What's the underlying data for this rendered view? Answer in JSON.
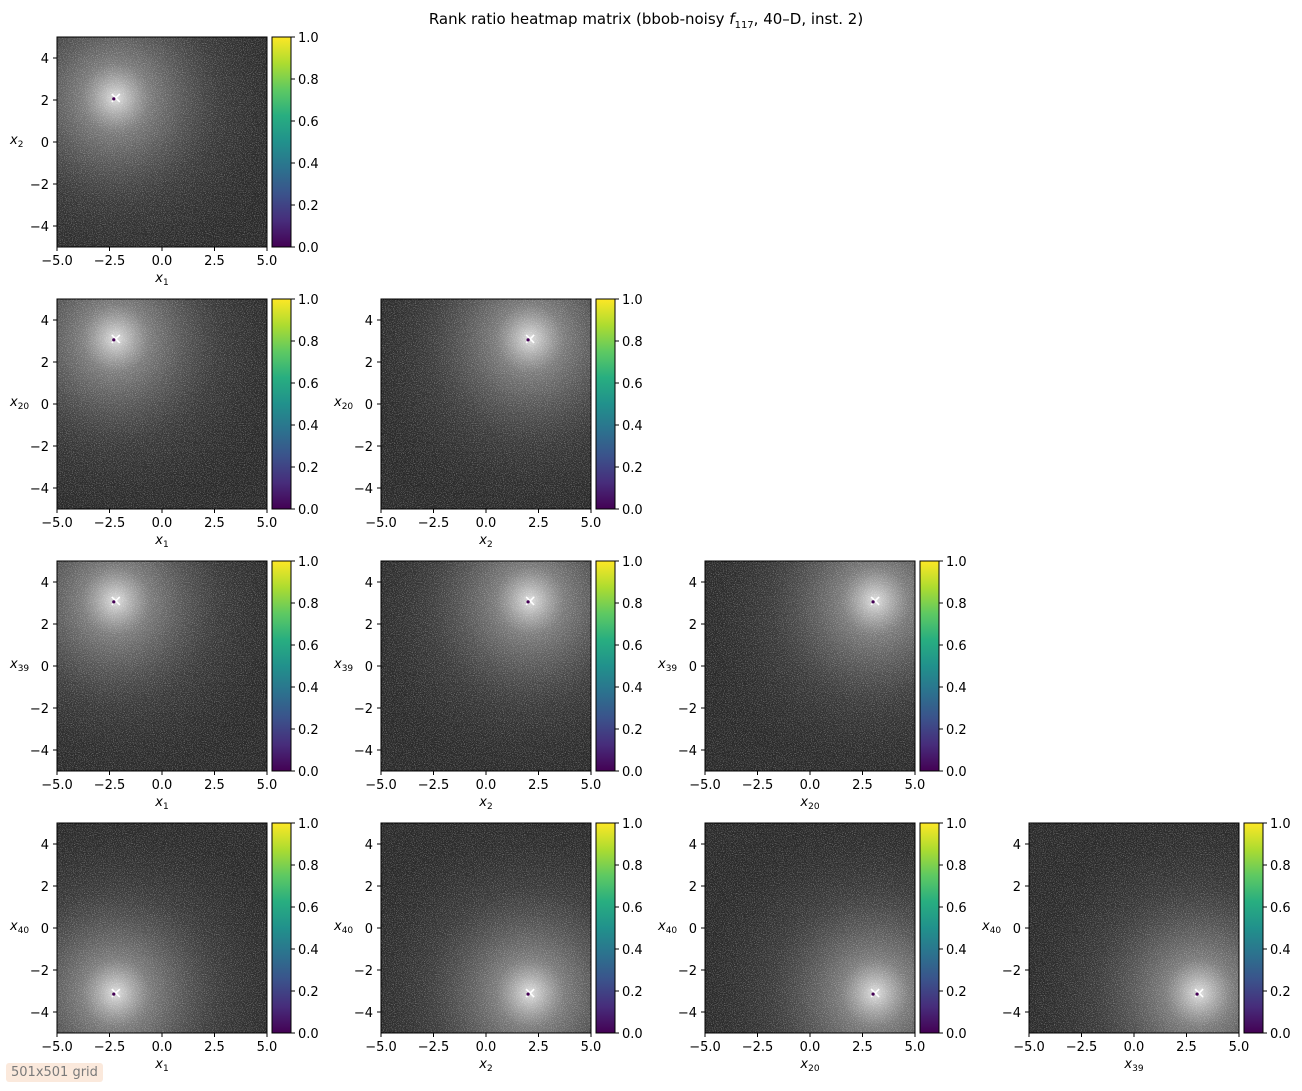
{
  "chart_data": {
    "type": "heatmap",
    "title_prefix": "Rank ratio heatmap matrix (bbob-noisy ",
    "title_func_symbol": "f",
    "title_func_sub": "117",
    "title_suffix": ", 40–D, inst. 2)",
    "grid_note": "501x501 grid",
    "colormap": "viridis",
    "colorbar_ticks": [
      0.0,
      0.2,
      0.4,
      0.6,
      0.8,
      1.0
    ],
    "colorbar_tick_labels": [
      "0.0",
      "0.2",
      "0.4",
      "0.6",
      "0.8",
      "1.0"
    ],
    "x_ticks": [
      -5.0,
      -2.5,
      0.0,
      2.5,
      5.0
    ],
    "x_tick_labels": [
      "−5.0",
      "−2.5",
      "0.0",
      "2.5",
      "5.0"
    ],
    "y_ticks": [
      -4,
      -2,
      0,
      2,
      4
    ],
    "y_tick_labels": [
      "−4",
      "−2",
      "0",
      "2",
      "4"
    ],
    "xlim": [
      -5,
      5
    ],
    "ylim": [
      -5,
      5
    ],
    "panels": [
      {
        "row": 0,
        "col": 0,
        "x_var": "1",
        "y_var": "2",
        "optimum": [
          -2.2,
          2.1
        ]
      },
      {
        "row": 1,
        "col": 0,
        "x_var": "1",
        "y_var": "20",
        "optimum": [
          -2.2,
          3.1
        ]
      },
      {
        "row": 1,
        "col": 1,
        "x_var": "2",
        "y_var": "20",
        "optimum": [
          2.1,
          3.1
        ]
      },
      {
        "row": 2,
        "col": 0,
        "x_var": "1",
        "y_var": "39",
        "optimum": [
          -2.2,
          3.1
        ]
      },
      {
        "row": 2,
        "col": 1,
        "x_var": "2",
        "y_var": "39",
        "optimum": [
          2.1,
          3.1
        ]
      },
      {
        "row": 2,
        "col": 2,
        "x_var": "20",
        "y_var": "39",
        "optimum": [
          3.1,
          3.1
        ]
      },
      {
        "row": 3,
        "col": 0,
        "x_var": "1",
        "y_var": "40",
        "optimum": [
          -2.2,
          -3.1
        ]
      },
      {
        "row": 3,
        "col": 1,
        "x_var": "2",
        "y_var": "40",
        "optimum": [
          2.1,
          -3.1
        ]
      },
      {
        "row": 3,
        "col": 2,
        "x_var": "20",
        "y_var": "40",
        "optimum": [
          3.1,
          -3.1
        ]
      },
      {
        "row": 3,
        "col": 3,
        "x_var": "39",
        "y_var": "40",
        "optimum": [
          3.1,
          -3.1
        ]
      }
    ]
  }
}
